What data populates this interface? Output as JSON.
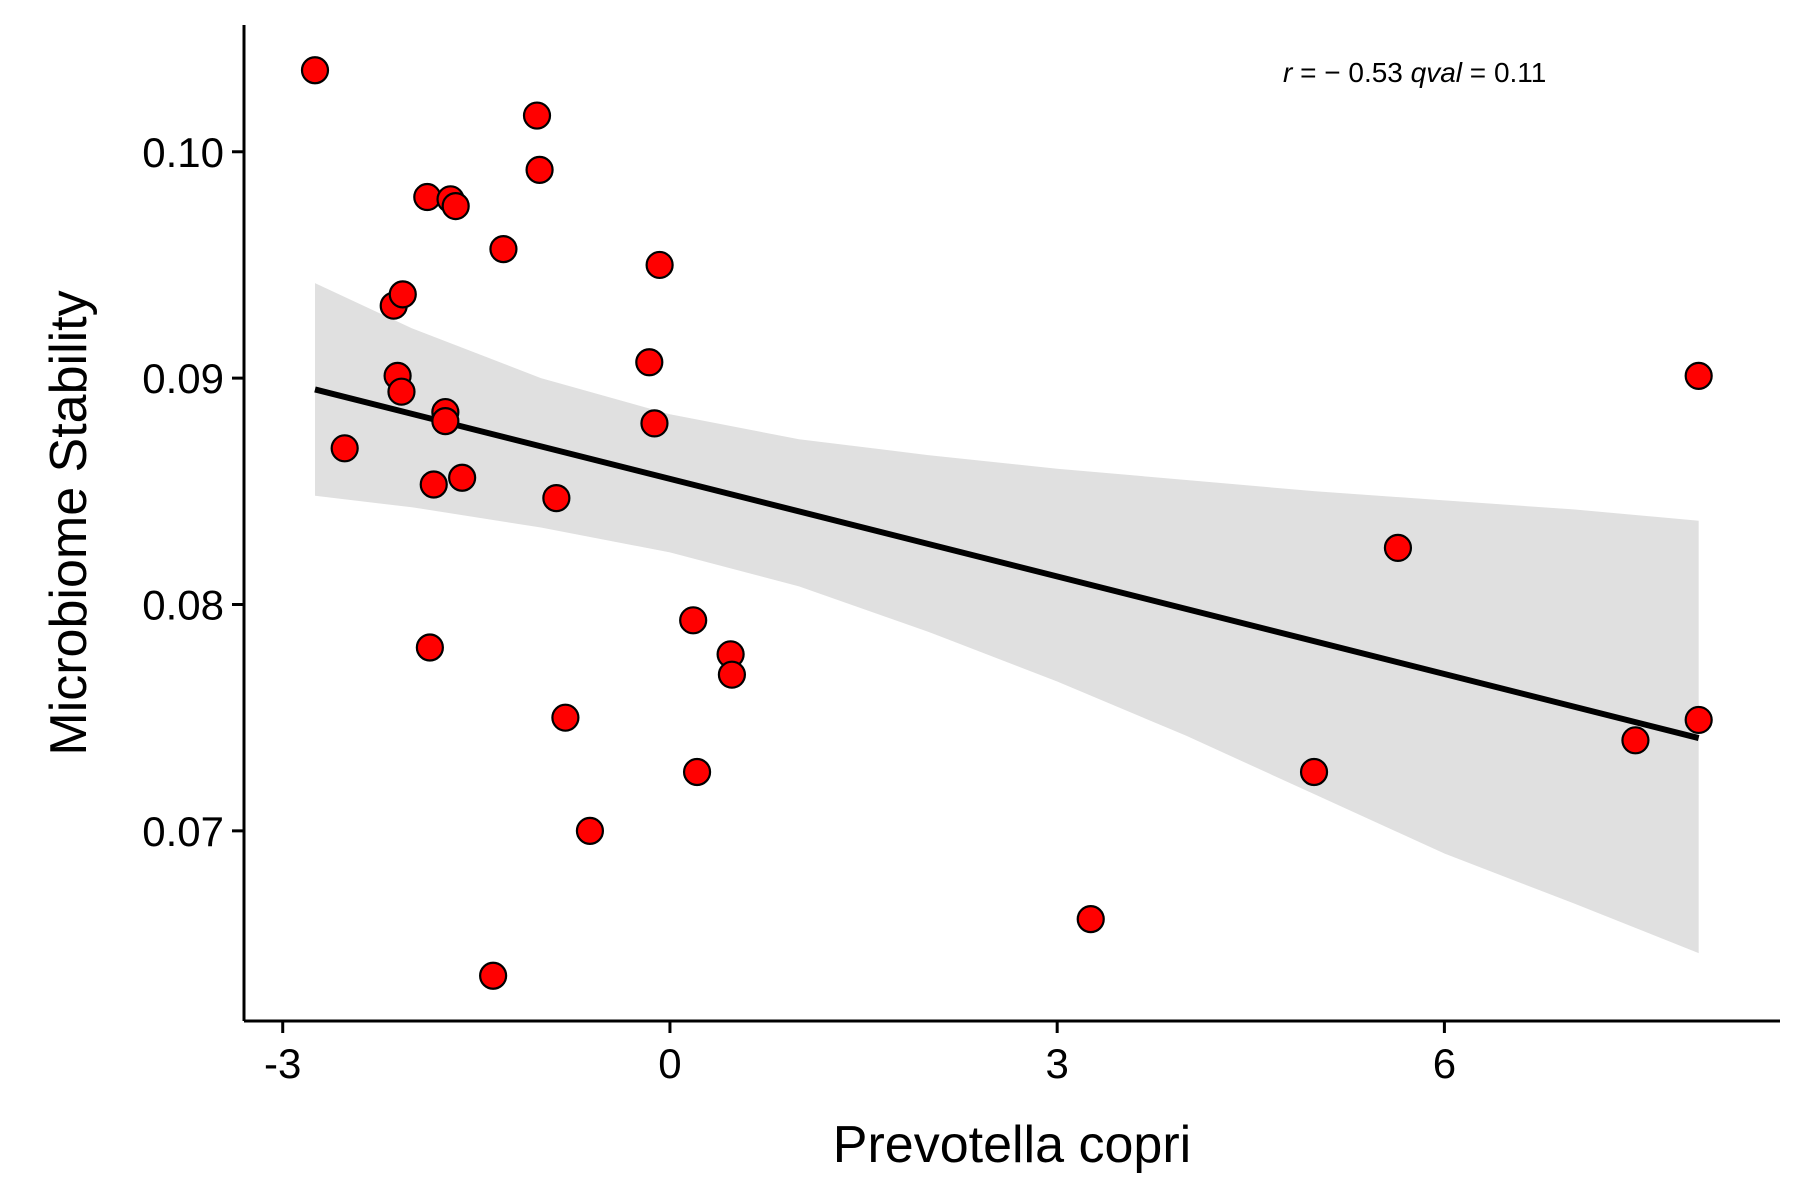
{
  "chart_data": {
    "type": "scatter",
    "xlabel": "Prevotella copri",
    "ylabel": "Microbiome Stability",
    "xlim": [
      -3.3,
      8.6
    ],
    "ylim": [
      0.0616,
      0.1056
    ],
    "xticks": [
      -3,
      0,
      3,
      6
    ],
    "xtick_labels": [
      "-3",
      "0",
      "3",
      "6"
    ],
    "yticks": [
      0.07,
      0.08,
      0.09,
      0.1
    ],
    "ytick_labels": [
      "0.07",
      "0.08",
      "0.09",
      "0.10"
    ],
    "annotation": {
      "r_symbol": "r",
      "r_text": " = − 0.53 ",
      "q_symbol": "qval",
      "q_text": " = 0.11"
    },
    "grid": false,
    "legend": "none",
    "point_color": "#ff0000",
    "ribbon_color": "#e0e0e0",
    "points": [
      {
        "x": -2.75,
        "y": 0.1036
      },
      {
        "x": -2.52,
        "y": 0.0869
      },
      {
        "x": -2.14,
        "y": 0.0932
      },
      {
        "x": -2.07,
        "y": 0.0937
      },
      {
        "x": -2.11,
        "y": 0.0901
      },
      {
        "x": -2.08,
        "y": 0.0894
      },
      {
        "x": -1.88,
        "y": 0.098
      },
      {
        "x": -1.7,
        "y": 0.0979
      },
      {
        "x": -1.66,
        "y": 0.0976
      },
      {
        "x": -1.74,
        "y": 0.0885
      },
      {
        "x": -1.74,
        "y": 0.0881
      },
      {
        "x": -1.83,
        "y": 0.0853
      },
      {
        "x": -1.61,
        "y": 0.0856
      },
      {
        "x": -1.86,
        "y": 0.0781
      },
      {
        "x": -1.29,
        "y": 0.0957
      },
      {
        "x": -1.03,
        "y": 0.1016
      },
      {
        "x": -1.01,
        "y": 0.0992
      },
      {
        "x": -0.88,
        "y": 0.0847
      },
      {
        "x": -0.81,
        "y": 0.075
      },
      {
        "x": -0.62,
        "y": 0.07
      },
      {
        "x": -1.37,
        "y": 0.0636
      },
      {
        "x": -0.08,
        "y": 0.095
      },
      {
        "x": -0.16,
        "y": 0.0907
      },
      {
        "x": -0.12,
        "y": 0.088
      },
      {
        "x": 0.18,
        "y": 0.0793
      },
      {
        "x": 0.47,
        "y": 0.0778
      },
      {
        "x": 0.48,
        "y": 0.0769
      },
      {
        "x": 0.21,
        "y": 0.0726
      },
      {
        "x": 3.26,
        "y": 0.0661
      },
      {
        "x": 4.99,
        "y": 0.0726
      },
      {
        "x": 5.64,
        "y": 0.0825
      },
      {
        "x": 7.48,
        "y": 0.074
      },
      {
        "x": 7.97,
        "y": 0.0901
      },
      {
        "x": 7.97,
        "y": 0.0749
      }
    ],
    "fit": {
      "type": "linear",
      "x": [
        -2.75,
        7.97
      ],
      "y": [
        0.0895,
        0.0741
      ]
    },
    "confidence_band": {
      "x": [
        -2.75,
        -2.0,
        -1.0,
        0.0,
        1.0,
        2.0,
        3.0,
        4.0,
        5.0,
        6.0,
        7.0,
        7.97
      ],
      "upper": [
        0.0942,
        0.0922,
        0.09,
        0.0884,
        0.0873,
        0.0866,
        0.086,
        0.0855,
        0.085,
        0.0846,
        0.0842,
        0.0837
      ],
      "lower": [
        0.0848,
        0.0843,
        0.0834,
        0.0823,
        0.0808,
        0.0788,
        0.0766,
        0.0742,
        0.0716,
        0.069,
        0.0668,
        0.0646
      ]
    }
  }
}
